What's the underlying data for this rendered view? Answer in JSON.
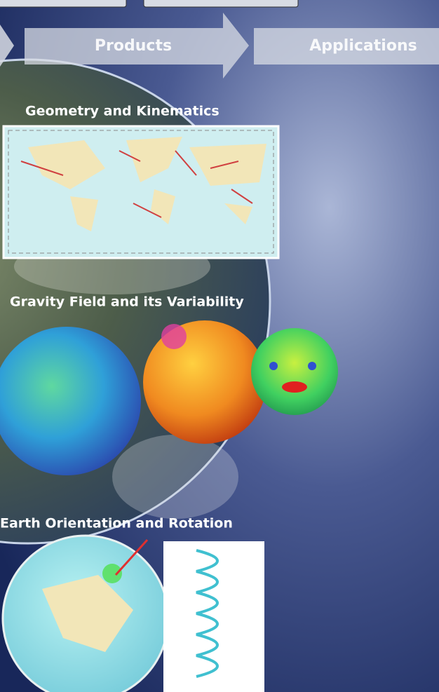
{
  "flow": {
    "steps": [
      "Products",
      "Applications"
    ]
  },
  "sections": [
    {
      "title": "Geometry and Kinematics"
    },
    {
      "title": "Gravity Field and its Variability"
    },
    {
      "title": "Earth Orientation and Rotation"
    }
  ]
}
